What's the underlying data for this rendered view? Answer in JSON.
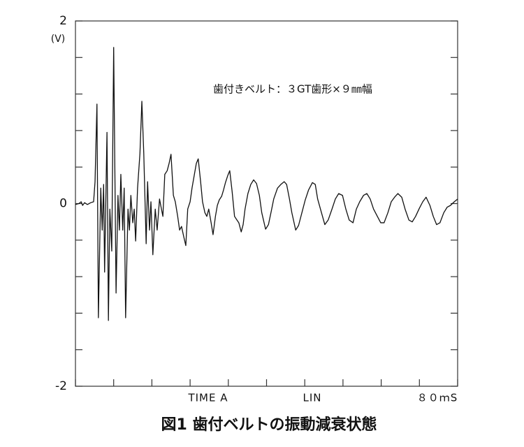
{
  "chart_data": {
    "type": "line",
    "y_unit": "(V)",
    "annotation": "歯付きベルト：３GT歯形×９㎜幅",
    "x_labels": [
      "TIME A",
      "LIN",
      "８０ｍS"
    ],
    "caption": "図1 歯付ベルトの振動減衰状態",
    "color": "#111111",
    "xlim": [
      0,
      80
    ],
    "ylim": [
      -2,
      2
    ],
    "yticks": [
      -2,
      0,
      2
    ],
    "y_minor_ticks": [
      -1.6,
      -1.2,
      -0.8,
      -0.4,
      0.4,
      0.8,
      1.2,
      1.6
    ],
    "xticks": [
      0,
      8,
      16,
      24,
      32,
      40,
      48,
      56,
      64,
      72,
      80
    ],
    "x": [
      0,
      0.7,
      1.2,
      1.5,
      1.9,
      2.5,
      3.2,
      3.8,
      4.1,
      4.5,
      4.8,
      5.3,
      5.6,
      5.9,
      6.1,
      6.6,
      6.9,
      7.2,
      7.6,
      8.0,
      8.5,
      8.9,
      9.2,
      9.5,
      9.9,
      10.2,
      10.5,
      11.0,
      11.3,
      11.6,
      12.0,
      12.3,
      12.6,
      13.0,
      13.5,
      13.9,
      14.3,
      14.8,
      15.1,
      15.5,
      15.8,
      16.2,
      16.7,
      17.1,
      17.6,
      18.0,
      18.3,
      18.7,
      19.2,
      19.6,
      20.0,
      20.5,
      20.9,
      21.4,
      21.8,
      22.2,
      22.7,
      23.1,
      23.5,
      24.0,
      24.4,
      24.9,
      25.3,
      25.7,
      26.2,
      26.6,
      27.1,
      27.5,
      27.9,
      28.4,
      28.8,
      29.3,
      29.7,
      30.1,
      30.6,
      31.0,
      31.4,
      31.9,
      32.3,
      32.8,
      33.3,
      33.8,
      34.2,
      34.7,
      35.1,
      35.5,
      36.1,
      36.7,
      37.3,
      37.9,
      38.5,
      39.0,
      39.8,
      40.4,
      41.0,
      41.5,
      42.3,
      43.0,
      43.7,
      44.2,
      44.8,
      45.3,
      46.1,
      46.7,
      47.4,
      48.1,
      48.8,
      49.6,
      50.2,
      50.7,
      51.5,
      52.2,
      52.9,
      53.7,
      54.4,
      55.1,
      55.9,
      56.6,
      57.3,
      58.1,
      58.8,
      59.5,
      60.3,
      61.0,
      61.7,
      62.4,
      63.2,
      63.9,
      64.6,
      65.4,
      66.1,
      66.8,
      67.5,
      68.3,
      69.0,
      69.8,
      70.5,
      71.2,
      72.0,
      72.7,
      73.4,
      74.2,
      74.9,
      75.6,
      76.3,
      77.1,
      77.8,
      78.5,
      79.3,
      80.0
    ],
    "values": [
      -0.01,
      0,
      0.02,
      -0.02,
      0.01,
      -0.01,
      0.01,
      0.02,
      0.24,
      1.09,
      -1.25,
      0.17,
      -0.29,
      0.21,
      -0.75,
      0.78,
      -1.28,
      -0.06,
      -0.52,
      1.71,
      -0.98,
      0.09,
      -0.29,
      0.32,
      -0.29,
      0.17,
      -1.25,
      -0.06,
      -0.29,
      0.09,
      -0.21,
      -0.06,
      -0.41,
      0.17,
      0.55,
      1.12,
      0.55,
      -0.44,
      0.24,
      -0.29,
      0.02,
      -0.56,
      -0.06,
      -0.29,
      0.05,
      -0.06,
      -0.14,
      0.32,
      0.36,
      0.44,
      0.54,
      0.09,
      0.02,
      -0.14,
      -0.29,
      -0.25,
      -0.37,
      -0.46,
      -0.06,
      0.02,
      0.17,
      0.32,
      0.44,
      0.49,
      0.24,
      0.02,
      -0.1,
      -0.14,
      -0.06,
      -0.21,
      -0.34,
      -0.14,
      -0.02,
      0.04,
      0.08,
      0.15,
      0.23,
      0.31,
      0.36,
      0.13,
      -0.14,
      -0.18,
      -0.21,
      -0.31,
      -0.23,
      -0.06,
      0.11,
      0.21,
      0.26,
      0.22,
      0.09,
      -0.1,
      -0.28,
      -0.23,
      -0.08,
      0.05,
      0.17,
      0.21,
      0.24,
      0.21,
      0.05,
      -0.1,
      -0.29,
      -0.24,
      -0.1,
      0.04,
      0.15,
      0.23,
      0.21,
      0.05,
      -0.1,
      -0.23,
      -0.18,
      -0.06,
      0.05,
      0.11,
      0.09,
      -0.06,
      -0.18,
      -0.21,
      -0.06,
      0.02,
      0.09,
      0.11,
      0.05,
      -0.06,
      -0.14,
      -0.21,
      -0.21,
      -0.1,
      0.02,
      0.07,
      0.11,
      0.07,
      -0.06,
      -0.18,
      -0.2,
      -0.14,
      -0.05,
      0.02,
      0.07,
      -0.02,
      -0.14,
      -0.23,
      -0.21,
      -0.1,
      -0.04,
      -0.02,
      0.02,
      0.05
    ]
  }
}
